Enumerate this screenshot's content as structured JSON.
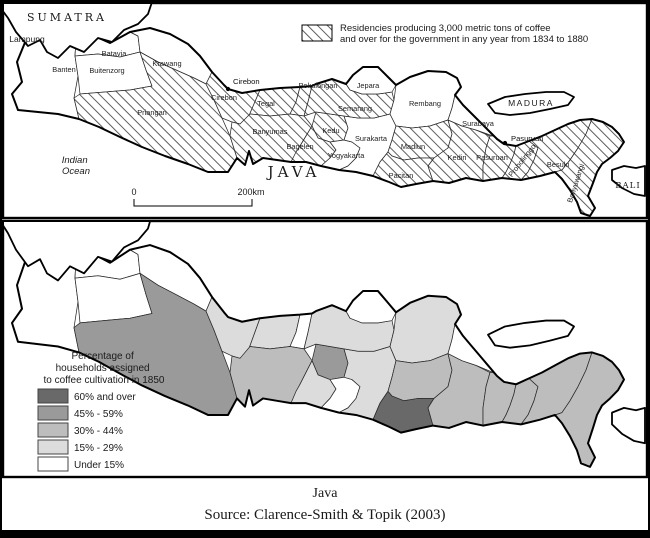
{
  "top_map": {
    "legend": {
      "lines": [
        "Residencies producing 3,000 metric tons of coffee",
        "and over for the government in any year from 1834 to 1880"
      ]
    },
    "scale_bar": {
      "start": "0",
      "end": "200km"
    },
    "cities": [
      {
        "id": "cirebon-city",
        "label": "Cirebon"
      },
      {
        "id": "pasuruan-city",
        "label": "Pasuruan"
      }
    ],
    "place_labels": {
      "sumatra": "SUMATRA",
      "lampung": "Lampung",
      "java": "JAVA",
      "madura": "MADURA",
      "bali": "BALI",
      "indian_ocean_lines": [
        "Indian",
        "Ocean"
      ]
    }
  },
  "regions": [
    {
      "id": "banten",
      "name": "Banten",
      "hatched": false,
      "category": 1
    },
    {
      "id": "batavia",
      "name": "Batavia",
      "hatched": false,
      "category": 1
    },
    {
      "id": "buitenzorg",
      "name": "Buitenzorg",
      "hatched": false,
      "category": 1
    },
    {
      "id": "krawang",
      "name": "Krawang",
      "hatched": false,
      "category": 1
    },
    {
      "id": "priangan",
      "name": "Priangan",
      "hatched": true,
      "category": 4
    },
    {
      "id": "cirebon",
      "name": "Cirebon",
      "hatched": true,
      "category": 2
    },
    {
      "id": "tegal",
      "name": "Tegal",
      "hatched": true,
      "category": 2
    },
    {
      "id": "pekalongan",
      "name": "Pekalongan",
      "hatched": true,
      "category": 1
    },
    {
      "id": "banyumas",
      "name": "Banyumas",
      "hatched": true,
      "category": 3
    },
    {
      "id": "kedu",
      "name": "Kedu",
      "hatched": true,
      "category": 4
    },
    {
      "id": "bagelen",
      "name": "Bagelen",
      "hatched": true,
      "category": 2
    },
    {
      "id": "yogyakarta",
      "name": "Yogyakarta",
      "hatched": false,
      "category": 1
    },
    {
      "id": "surakarta",
      "name": "Surakarta",
      "hatched": false,
      "category": 2
    },
    {
      "id": "semarang",
      "name": "Semarang",
      "hatched": true,
      "category": 2
    },
    {
      "id": "jepara",
      "name": "Jepara",
      "hatched": false,
      "category": 1
    },
    {
      "id": "rembang",
      "name": "Rembang",
      "hatched": false,
      "category": 2
    },
    {
      "id": "madiun",
      "name": "Madiun",
      "hatched": true,
      "category": 3
    },
    {
      "id": "pacitan",
      "name": "Pacitan",
      "hatched": true,
      "category": 5
    },
    {
      "id": "kediri",
      "name": "Kediri",
      "hatched": true,
      "category": 3
    },
    {
      "id": "surabaya",
      "name": "Surabaya",
      "hatched": false,
      "category": 1
    },
    {
      "id": "pasuruan",
      "name": "Pasuruan",
      "hatched": true,
      "category": 3
    },
    {
      "id": "probolinggo",
      "name": "Probolinggo",
      "hatched": true,
      "category": 3
    },
    {
      "id": "besuki",
      "name": "Besuki",
      "hatched": true,
      "category": 3
    },
    {
      "id": "banyuwangi",
      "name": "Banyuwangi",
      "hatched": true,
      "category": 3
    }
  ],
  "bottom_map": {
    "legend": {
      "title_lines": [
        "Percentage of",
        "households assigned",
        "to coffee cultivation in 1850"
      ],
      "items": [
        {
          "category": 5,
          "label": "60% and over",
          "color": "#696969"
        },
        {
          "category": 4,
          "label": "45% - 59%",
          "color": "#9a9a9a"
        },
        {
          "category": 3,
          "label": "30% - 44%",
          "color": "#bdbdbd"
        },
        {
          "category": 2,
          "label": "15% - 29%",
          "color": "#dcdcdc"
        },
        {
          "category": 1,
          "label": "Under 15%",
          "color": "#ffffff"
        }
      ]
    }
  },
  "captions": {
    "island": "Java",
    "source": "Source: Clarence-Smith & Topik (2003)"
  }
}
